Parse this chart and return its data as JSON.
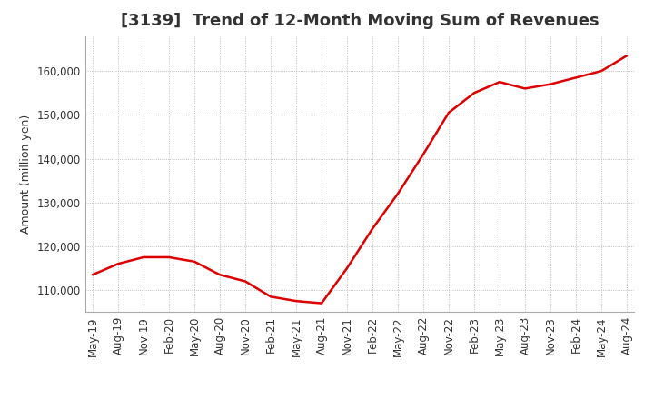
{
  "title": "[3139]  Trend of 12-Month Moving Sum of Revenues",
  "ylabel": "Amount (million yen)",
  "line_color": "#dd0000",
  "background_color": "#ffffff",
  "grid_color": "#aaaaaa",
  "ylim": [
    105000,
    168000
  ],
  "yticks": [
    110000,
    120000,
    130000,
    140000,
    150000,
    160000
  ],
  "x_labels": [
    "May-19",
    "Aug-19",
    "Nov-19",
    "Feb-20",
    "May-20",
    "Aug-20",
    "Nov-20",
    "Feb-21",
    "May-21",
    "Aug-21",
    "Nov-21",
    "Feb-22",
    "May-22",
    "Aug-22",
    "Nov-22",
    "Feb-23",
    "May-23",
    "Aug-23",
    "Nov-23",
    "Feb-24",
    "May-24",
    "Aug-24"
  ],
  "data": [
    [
      "May-19",
      113500
    ],
    [
      "Aug-19",
      116000
    ],
    [
      "Nov-19",
      117500
    ],
    [
      "Feb-20",
      117500
    ],
    [
      "May-20",
      116500
    ],
    [
      "Aug-20",
      113500
    ],
    [
      "Nov-20",
      112000
    ],
    [
      "Feb-21",
      108500
    ],
    [
      "May-21",
      107500
    ],
    [
      "Aug-21",
      107000
    ],
    [
      "Nov-21",
      115000
    ],
    [
      "Feb-22",
      124000
    ],
    [
      "May-22",
      132000
    ],
    [
      "Aug-22",
      141000
    ],
    [
      "Nov-22",
      150500
    ],
    [
      "Feb-23",
      155000
    ],
    [
      "May-23",
      157500
    ],
    [
      "Aug-23",
      156000
    ],
    [
      "Nov-23",
      157000
    ],
    [
      "Feb-24",
      158500
    ],
    [
      "May-24",
      160000
    ],
    [
      "Aug-24",
      163500
    ]
  ],
  "title_fontsize": 13,
  "axis_label_fontsize": 9,
  "tick_fontsize": 8.5
}
